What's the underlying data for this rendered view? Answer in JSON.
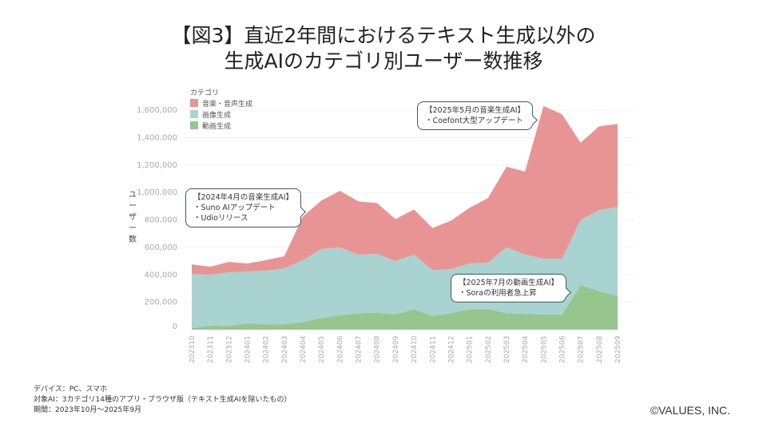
{
  "title_line1": "【図3】直近2年間におけるテキスト生成以外の",
  "title_line2": "生成AIのカテゴリ別ユーザー数推移",
  "chart_data": {
    "type": "area",
    "stacked": true,
    "ylabel": "ユーザー数",
    "legend_title": "カテゴリ",
    "legend_position": "top-left",
    "ylim": [
      0,
      1600000
    ],
    "yticks": [
      0,
      200000,
      400000,
      600000,
      800000,
      1000000,
      1200000,
      1400000,
      1600000
    ],
    "ytick_labels": [
      "0",
      "200,000",
      "400,000",
      "600,000",
      "800,000",
      "1,000,000",
      "1,200,000",
      "1,400,000",
      "1,600,000"
    ],
    "categories": [
      "202310",
      "202311",
      "202312",
      "202401",
      "202402",
      "202403",
      "202404",
      "202405",
      "202406",
      "202407",
      "202408",
      "202409",
      "202410",
      "202411",
      "202412",
      "202501",
      "202502",
      "202503",
      "202504",
      "202505",
      "202506",
      "202507",
      "202508",
      "202509"
    ],
    "series": [
      {
        "name": "動画生成",
        "color": "#96c58e",
        "values": [
          10000,
          30000,
          28000,
          45000,
          40000,
          40000,
          55000,
          85000,
          105000,
          120000,
          125000,
          110000,
          150000,
          100000,
          120000,
          150000,
          150000,
          120000,
          115000,
          110000,
          110000,
          325000,
          280000,
          245000
        ]
      },
      {
        "name": "画像生成",
        "color": "#a8d3d0",
        "values": [
          396000,
          370000,
          390000,
          379000,
          390000,
          407000,
          451000,
          503000,
          495000,
          427000,
          428000,
          390000,
          397000,
          335000,
          321000,
          332000,
          338000,
          480000,
          432000,
          408000,
          408000,
          475000,
          591000,
          649000
        ]
      },
      {
        "name": "音楽・音声生成",
        "color": "#e99494",
        "values": [
          70000,
          59000,
          76000,
          58000,
          76000,
          88000,
          318000,
          353000,
          412000,
          388000,
          370000,
          306000,
          329000,
          306000,
          353000,
          406000,
          471000,
          588000,
          606000,
          1112000,
          1052000,
          562000,
          611000,
          606000
        ]
      }
    ],
    "annotations": [
      {
        "title": "【2024年4月の音楽生成AI】",
        "lines": [
          "・Suno AIアップデート",
          "・Udioリリース"
        ]
      },
      {
        "title": "【2025年5月の音楽生成AI】",
        "lines": [
          "・Coefont大型アップデート"
        ]
      },
      {
        "title": "【2025年7月の動画生成AI】",
        "lines": [
          "・Soraの利用者急上昇"
        ]
      }
    ]
  },
  "footer": {
    "device": "デバイス：PC、スマホ",
    "target": "対象AI：3カテゴリ14種のアプリ・ブラウザ版（テキスト生成AIを除いたもの）",
    "period": "期間：2023年10月～2025年9月"
  },
  "copyright": "©VALUES, INC."
}
